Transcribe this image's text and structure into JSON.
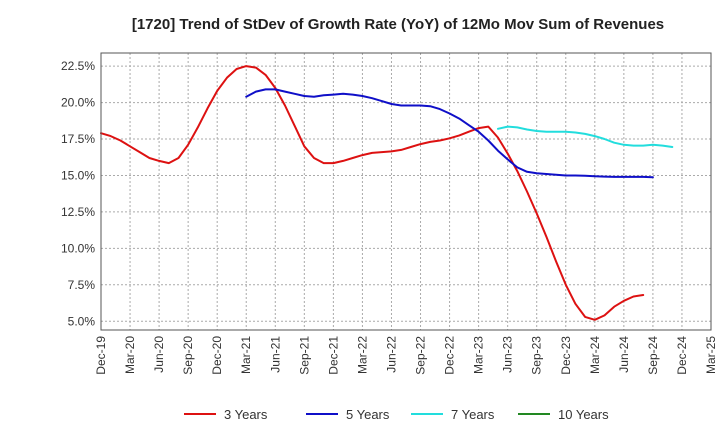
{
  "chart_data": {
    "type": "line",
    "title": "[1720]  Trend of StDev of Growth Rate (YoY) of 12Mo Mov Sum of Revenues",
    "xlabel": "",
    "ylabel": "",
    "x_tick_labels": [
      "Dec-19",
      "Mar-20",
      "Jun-20",
      "Sep-20",
      "Dec-20",
      "Mar-21",
      "Jun-21",
      "Sep-21",
      "Dec-21",
      "Mar-22",
      "Jun-22",
      "Sep-22",
      "Dec-22",
      "Mar-23",
      "Jun-23",
      "Sep-23",
      "Dec-23",
      "Mar-24",
      "Jun-24",
      "Sep-24",
      "Dec-24",
      "Mar-25"
    ],
    "y_tick_labels": [
      "5.0%",
      "7.5%",
      "10.0%",
      "12.5%",
      "15.0%",
      "17.5%",
      "20.0%",
      "22.5%"
    ],
    "y_ticks": [
      5.0,
      7.5,
      10.0,
      12.5,
      15.0,
      17.5,
      20.0,
      22.5
    ],
    "ylim": [
      4.4,
      23.4
    ],
    "x_range_months": [
      0,
      63
    ],
    "grid": true,
    "legend_position": "bottom",
    "series": [
      {
        "name": "3 Years",
        "color": "#dd1111",
        "start_month": 0,
        "values": [
          17.9,
          17.7,
          17.4,
          17.0,
          16.6,
          16.2,
          16.0,
          15.85,
          16.2,
          17.1,
          18.3,
          19.6,
          20.8,
          21.7,
          22.3,
          22.5,
          22.4,
          21.9,
          21.0,
          19.8,
          18.4,
          17.0,
          16.2,
          15.85,
          15.85,
          16.0,
          16.2,
          16.4,
          16.55,
          16.6,
          16.65,
          16.75,
          16.95,
          17.15,
          17.3,
          17.4,
          17.55,
          17.75,
          18.0,
          18.25,
          18.35,
          17.6,
          16.5,
          15.3,
          13.9,
          12.4,
          10.8,
          9.1,
          7.5,
          6.2,
          5.3,
          5.1,
          5.4,
          6.0,
          6.4,
          6.7,
          6.8
        ]
      },
      {
        "name": "5 Years",
        "color": "#0f0fc8",
        "start_month": 15,
        "values": [
          20.4,
          20.75,
          20.9,
          20.9,
          20.75,
          20.6,
          20.45,
          20.4,
          20.5,
          20.55,
          20.6,
          20.55,
          20.45,
          20.3,
          20.1,
          19.9,
          19.8,
          19.8,
          19.8,
          19.75,
          19.55,
          19.25,
          18.9,
          18.45,
          18.0,
          17.4,
          16.7,
          16.1,
          15.55,
          15.25,
          15.15,
          15.1,
          15.05,
          15.0,
          15.0,
          14.98,
          14.95,
          14.92,
          14.9,
          14.9,
          14.9,
          14.9,
          14.88
        ]
      },
      {
        "name": "7 Years",
        "color": "#22dddd",
        "start_month": 41,
        "values": [
          18.2,
          18.35,
          18.3,
          18.15,
          18.05,
          18.0,
          18.0,
          18.0,
          17.95,
          17.85,
          17.7,
          17.5,
          17.25,
          17.1,
          17.05,
          17.05,
          17.1,
          17.05,
          16.95
        ]
      },
      {
        "name": "10 Years",
        "color": "#228822",
        "start_month": 0,
        "values": []
      }
    ]
  }
}
